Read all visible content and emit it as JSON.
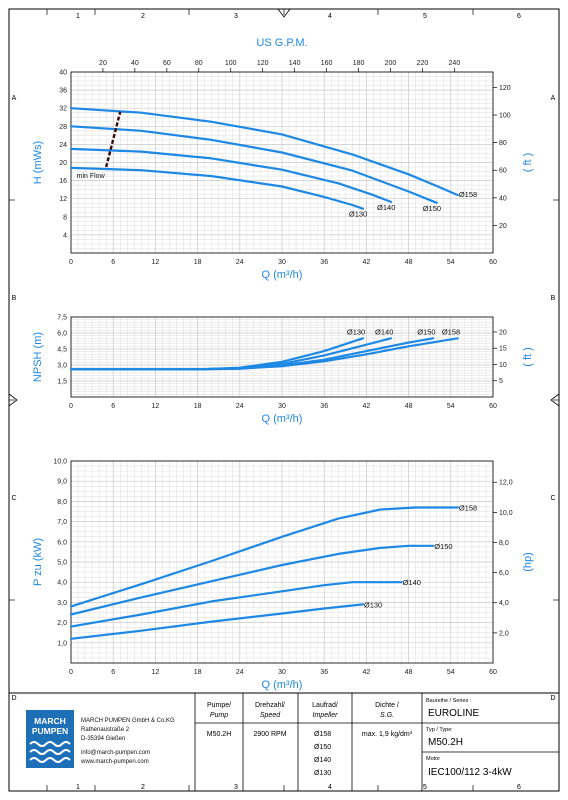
{
  "sheet": {
    "col_markers": [
      "1",
      "2",
      "3",
      "4",
      "5",
      "6"
    ],
    "row_markers": [
      "A",
      "B",
      "C",
      "D"
    ]
  },
  "colors": {
    "accent": "#1e88e5",
    "grid": "#c8c8c8",
    "frame": "#000000",
    "text": "#1a1a1a"
  },
  "chart_data": [
    {
      "type": "line",
      "title": "",
      "top_axis_label": "US G.P.M.",
      "top_ticks": [
        20,
        40,
        60,
        80,
        100,
        120,
        140,
        160,
        180,
        200,
        220,
        240
      ],
      "xlabel": "Q (m³/h)",
      "ylabel": "H (mWs)",
      "y2label": "( ft )",
      "xlim": [
        0,
        60
      ],
      "ylim": [
        0,
        40
      ],
      "y2lim": [
        0,
        131.2
      ],
      "x_ticks": [
        0,
        6,
        12,
        18,
        24,
        30,
        36,
        42,
        48,
        54,
        60
      ],
      "y_ticks": [
        4,
        8,
        12,
        16,
        20,
        24,
        28,
        32,
        36,
        40
      ],
      "y2_ticks": [
        20,
        40,
        60,
        80,
        100,
        120
      ],
      "grid": true,
      "series": [
        {
          "name": "Ø158",
          "x": [
            0,
            10,
            20,
            30,
            40,
            48,
            52,
            55
          ],
          "y": [
            32,
            31,
            29,
            26.2,
            21.8,
            17.4,
            14.8,
            12.8
          ]
        },
        {
          "name": "Ø150",
          "x": [
            0,
            10,
            20,
            30,
            40,
            48,
            52
          ],
          "y": [
            28,
            27,
            25,
            22.2,
            18.2,
            13.6,
            11.1
          ]
        },
        {
          "name": "Ø140",
          "x": [
            0,
            10,
            20,
            30,
            38,
            43,
            45.5
          ],
          "y": [
            23,
            22.4,
            20.9,
            18.4,
            15.4,
            12.8,
            11.3
          ]
        },
        {
          "name": "Ø130",
          "x": [
            0,
            10,
            20,
            30,
            36,
            40,
            41.5
          ],
          "y": [
            18.8,
            18.3,
            17,
            14.7,
            12.4,
            10.6,
            9.8
          ]
        }
      ],
      "annotation": {
        "label": "min Flow",
        "x": [
          5,
          7
        ],
        "y": [
          19,
          31.2
        ]
      }
    },
    {
      "type": "line",
      "xlabel": "Q (m³/h)",
      "ylabel": "NPSH (m)",
      "y2label": "( ft )",
      "xlim": [
        0,
        60
      ],
      "ylim": [
        0,
        7.5
      ],
      "y2lim": [
        0,
        24.6
      ],
      "x_ticks": [
        0,
        6,
        12,
        18,
        24,
        30,
        36,
        42,
        48,
        54,
        60
      ],
      "y_ticks": [
        "1,5",
        "3,0",
        "4,5",
        "6,0",
        "7,5"
      ],
      "y_tick_values": [
        1.5,
        3,
        4.5,
        6,
        7.5
      ],
      "y2_ticks": [
        5,
        10,
        15,
        20
      ],
      "grid": true,
      "series": [
        {
          "name": "Ø130",
          "x": [
            0,
            18,
            24,
            30,
            36,
            41.5
          ],
          "y": [
            2.6,
            2.6,
            2.75,
            3.3,
            4.3,
            5.5
          ]
        },
        {
          "name": "Ø140",
          "x": [
            0,
            18,
            24,
            30,
            36,
            42,
            45.5
          ],
          "y": [
            2.6,
            2.6,
            2.7,
            3.1,
            3.9,
            4.9,
            5.5
          ]
        },
        {
          "name": "Ø150",
          "x": [
            0,
            18,
            24,
            30,
            36,
            42,
            48,
            51.5
          ],
          "y": [
            2.6,
            2.6,
            2.65,
            2.95,
            3.5,
            4.3,
            5.1,
            5.5
          ]
        },
        {
          "name": "Ø158",
          "x": [
            0,
            18,
            24,
            30,
            36,
            42,
            48,
            55
          ],
          "y": [
            2.6,
            2.6,
            2.65,
            2.9,
            3.35,
            4,
            4.75,
            5.5
          ]
        }
      ]
    },
    {
      "type": "line",
      "xlabel": "Q (m³/h)",
      "ylabel": "P zu (kW)",
      "y2label": "(hp)",
      "xlim": [
        0,
        60
      ],
      "ylim": [
        0,
        10
      ],
      "y2lim": [
        0,
        13.41
      ],
      "x_ticks": [
        0,
        6,
        12,
        18,
        24,
        30,
        36,
        42,
        48,
        54,
        60
      ],
      "y_ticks": [
        "1,0",
        "2,0",
        "3,0",
        "4,0",
        "5,0",
        "6,0",
        "7,0",
        "8,0",
        "9,0",
        "10,0"
      ],
      "y_tick_values": [
        1,
        2,
        3,
        4,
        5,
        6,
        7,
        8,
        9,
        10
      ],
      "y2_ticks": [
        "2,0",
        "4,0",
        "6,0",
        "8,0",
        "10,0",
        "12,0"
      ],
      "y2_tick_values": [
        2,
        4,
        6,
        8,
        10,
        12
      ],
      "grid": true,
      "series": [
        {
          "name": "Ø158",
          "x": [
            0,
            10,
            20,
            30,
            38,
            44,
            49,
            55
          ],
          "y": [
            2.8,
            3.9,
            5.05,
            6.25,
            7.15,
            7.6,
            7.7,
            7.7
          ]
        },
        {
          "name": "Ø150",
          "x": [
            0,
            10,
            20,
            30,
            38,
            44,
            48,
            51.5
          ],
          "y": [
            2.4,
            3.25,
            4.05,
            4.85,
            5.4,
            5.7,
            5.8,
            5.8
          ]
        },
        {
          "name": "Ø140",
          "x": [
            0,
            10,
            20,
            30,
            36,
            40,
            44,
            47
          ],
          "y": [
            1.8,
            2.4,
            3.05,
            3.55,
            3.85,
            4.0,
            4.0,
            4.0
          ]
        },
        {
          "name": "Ø130",
          "x": [
            0,
            10,
            20,
            30,
            36,
            41.5
          ],
          "y": [
            1.2,
            1.6,
            2.05,
            2.45,
            2.7,
            2.9
          ]
        }
      ]
    }
  ],
  "title_block": {
    "company_lines": [
      "MARCH PUMPEN GmbH & Co.KG",
      "Rathenaustraße 2",
      "D-35394 Gießen"
    ],
    "contact_lines": [
      "info@march-pumpen.com",
      "www.march-pumpen.com"
    ],
    "logo_text": [
      "MARCH",
      "PUMPEN"
    ],
    "pump_header": "Pumpe/",
    "pump_header_sub": "Pump",
    "speed_header": "Drehzahl/",
    "speed_header_sub": "Speed",
    "impeller_header": "Laufrad/",
    "impeller_header_sub": "Impeller",
    "density_header": "Dichte  /",
    "density_header_sub": "S.G.",
    "pump_value": "M50.2H",
    "speed_value": "2900 RPM",
    "impellers": [
      "Ø158",
      "Ø150",
      "Ø140",
      "Ø130"
    ],
    "density_value": "max. 1,9 kg/dm³",
    "series_label": "Baureihe / Series :",
    "series_value": "EUROLINE",
    "type_label": "Typ / Type:",
    "type_value": "M50.2H",
    "motor_label": "Motor",
    "motor_value": "IEC100/112 3-4kW"
  }
}
